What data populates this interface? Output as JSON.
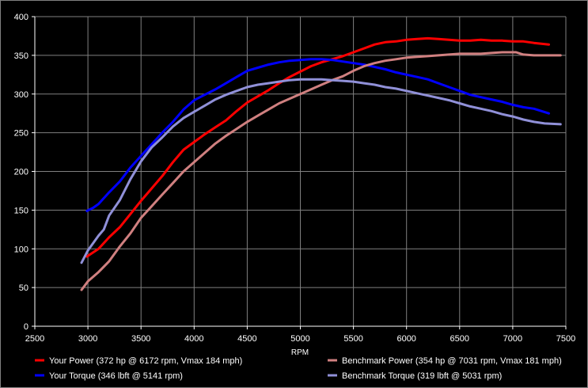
{
  "chart_data": {
    "type": "line",
    "title": "",
    "xlabel": "RPM",
    "ylabel": "",
    "xlim": [
      2500,
      7500
    ],
    "ylim": [
      0,
      400
    ],
    "xticks": [
      2500,
      3000,
      3500,
      4000,
      4500,
      5000,
      5500,
      6000,
      6500,
      7000,
      7500
    ],
    "yticks": [
      0,
      50,
      100,
      150,
      200,
      250,
      300,
      350,
      400
    ],
    "grid": true,
    "legend_position": "bottom",
    "series": [
      {
        "name": "Your Power (372 hp @ 6172 rpm, Vmax 184 mph)",
        "color": "#ff0000",
        "points": [
          [
            2990,
            90
          ],
          [
            3100,
            100
          ],
          [
            3200,
            115
          ],
          [
            3300,
            128
          ],
          [
            3400,
            145
          ],
          [
            3500,
            162
          ],
          [
            3600,
            178
          ],
          [
            3700,
            194
          ],
          [
            3800,
            212
          ],
          [
            3900,
            228
          ],
          [
            4000,
            238
          ],
          [
            4100,
            248
          ],
          [
            4200,
            257
          ],
          [
            4300,
            266
          ],
          [
            4400,
            278
          ],
          [
            4500,
            289
          ],
          [
            4600,
            297
          ],
          [
            4700,
            305
          ],
          [
            4800,
            314
          ],
          [
            4900,
            322
          ],
          [
            5000,
            329
          ],
          [
            5100,
            336
          ],
          [
            5200,
            341
          ],
          [
            5300,
            345
          ],
          [
            5400,
            349
          ],
          [
            5500,
            354
          ],
          [
            5600,
            359
          ],
          [
            5700,
            364
          ],
          [
            5800,
            367
          ],
          [
            5900,
            368
          ],
          [
            6000,
            370
          ],
          [
            6100,
            371
          ],
          [
            6200,
            372
          ],
          [
            6300,
            371
          ],
          [
            6400,
            370
          ],
          [
            6500,
            369
          ],
          [
            6600,
            369
          ],
          [
            6700,
            370
          ],
          [
            6800,
            369
          ],
          [
            6900,
            369
          ],
          [
            7000,
            368
          ],
          [
            7100,
            368
          ],
          [
            7200,
            366
          ],
          [
            7340,
            364
          ]
        ]
      },
      {
        "name": "Your Torque (346 lbft @ 5141 rpm)",
        "color": "#0000ff",
        "points": [
          [
            2990,
            149
          ],
          [
            3050,
            153
          ],
          [
            3100,
            158
          ],
          [
            3200,
            173
          ],
          [
            3300,
            187
          ],
          [
            3400,
            205
          ],
          [
            3500,
            220
          ],
          [
            3600,
            235
          ],
          [
            3700,
            250
          ],
          [
            3800,
            264
          ],
          [
            3900,
            280
          ],
          [
            4000,
            292
          ],
          [
            4100,
            299
          ],
          [
            4200,
            306
          ],
          [
            4300,
            314
          ],
          [
            4400,
            322
          ],
          [
            4500,
            330
          ],
          [
            4600,
            334
          ],
          [
            4700,
            338
          ],
          [
            4800,
            341
          ],
          [
            4900,
            343
          ],
          [
            5000,
            344
          ],
          [
            5100,
            345
          ],
          [
            5200,
            345
          ],
          [
            5300,
            344
          ],
          [
            5400,
            342
          ],
          [
            5500,
            340
          ],
          [
            5600,
            338
          ],
          [
            5700,
            335
          ],
          [
            5800,
            332
          ],
          [
            5900,
            328
          ],
          [
            6000,
            325
          ],
          [
            6100,
            322
          ],
          [
            6200,
            319
          ],
          [
            6300,
            314
          ],
          [
            6400,
            309
          ],
          [
            6500,
            304
          ],
          [
            6600,
            299
          ],
          [
            6700,
            296
          ],
          [
            6800,
            293
          ],
          [
            6900,
            290
          ],
          [
            7000,
            286
          ],
          [
            7100,
            283
          ],
          [
            7200,
            281
          ],
          [
            7340,
            275
          ]
        ]
      },
      {
        "name": "Benchmark Power (354 hp @ 7031 rpm, Vmax 181 mph)",
        "color": "#d08080",
        "points": [
          [
            2940,
            47
          ],
          [
            3000,
            58
          ],
          [
            3100,
            70
          ],
          [
            3200,
            84
          ],
          [
            3300,
            103
          ],
          [
            3400,
            120
          ],
          [
            3500,
            140
          ],
          [
            3600,
            155
          ],
          [
            3700,
            170
          ],
          [
            3800,
            185
          ],
          [
            3900,
            200
          ],
          [
            4000,
            212
          ],
          [
            4100,
            224
          ],
          [
            4200,
            236
          ],
          [
            4300,
            246
          ],
          [
            4400,
            255
          ],
          [
            4500,
            264
          ],
          [
            4600,
            272
          ],
          [
            4700,
            280
          ],
          [
            4800,
            288
          ],
          [
            4900,
            294
          ],
          [
            5000,
            300
          ],
          [
            5100,
            306
          ],
          [
            5200,
            312
          ],
          [
            5300,
            318
          ],
          [
            5400,
            323
          ],
          [
            5500,
            330
          ],
          [
            5600,
            336
          ],
          [
            5700,
            340
          ],
          [
            5800,
            343
          ],
          [
            5900,
            345
          ],
          [
            6000,
            347
          ],
          [
            6100,
            348
          ],
          [
            6200,
            349
          ],
          [
            6300,
            350
          ],
          [
            6400,
            351
          ],
          [
            6500,
            352
          ],
          [
            6600,
            352
          ],
          [
            6700,
            352
          ],
          [
            6800,
            353
          ],
          [
            6900,
            354
          ],
          [
            7000,
            354
          ],
          [
            7031,
            354
          ],
          [
            7100,
            351
          ],
          [
            7200,
            350
          ],
          [
            7300,
            350
          ],
          [
            7450,
            350
          ]
        ]
      },
      {
        "name": "Benchmark Torque (319 lbft @ 5031 rpm)",
        "color": "#9090d8",
        "points": [
          [
            2940,
            82
          ],
          [
            3000,
            98
          ],
          [
            3100,
            117
          ],
          [
            3150,
            125
          ],
          [
            3200,
            143
          ],
          [
            3300,
            163
          ],
          [
            3400,
            190
          ],
          [
            3500,
            213
          ],
          [
            3600,
            231
          ],
          [
            3700,
            244
          ],
          [
            3800,
            258
          ],
          [
            3900,
            269
          ],
          [
            4000,
            277
          ],
          [
            4100,
            285
          ],
          [
            4200,
            293
          ],
          [
            4300,
            299
          ],
          [
            4400,
            304
          ],
          [
            4500,
            309
          ],
          [
            4600,
            312
          ],
          [
            4700,
            314
          ],
          [
            4800,
            316
          ],
          [
            4900,
            318
          ],
          [
            5000,
            319
          ],
          [
            5100,
            319
          ],
          [
            5200,
            319
          ],
          [
            5300,
            318
          ],
          [
            5400,
            317
          ],
          [
            5500,
            316
          ],
          [
            5600,
            314
          ],
          [
            5700,
            312
          ],
          [
            5800,
            309
          ],
          [
            5900,
            307
          ],
          [
            6000,
            304
          ],
          [
            6100,
            301
          ],
          [
            6200,
            298
          ],
          [
            6300,
            295
          ],
          [
            6400,
            292
          ],
          [
            6500,
            288
          ],
          [
            6600,
            284
          ],
          [
            6700,
            281
          ],
          [
            6800,
            278
          ],
          [
            6900,
            274
          ],
          [
            7000,
            271
          ],
          [
            7100,
            267
          ],
          [
            7200,
            264
          ],
          [
            7300,
            262
          ],
          [
            7450,
            261
          ]
        ]
      }
    ]
  }
}
